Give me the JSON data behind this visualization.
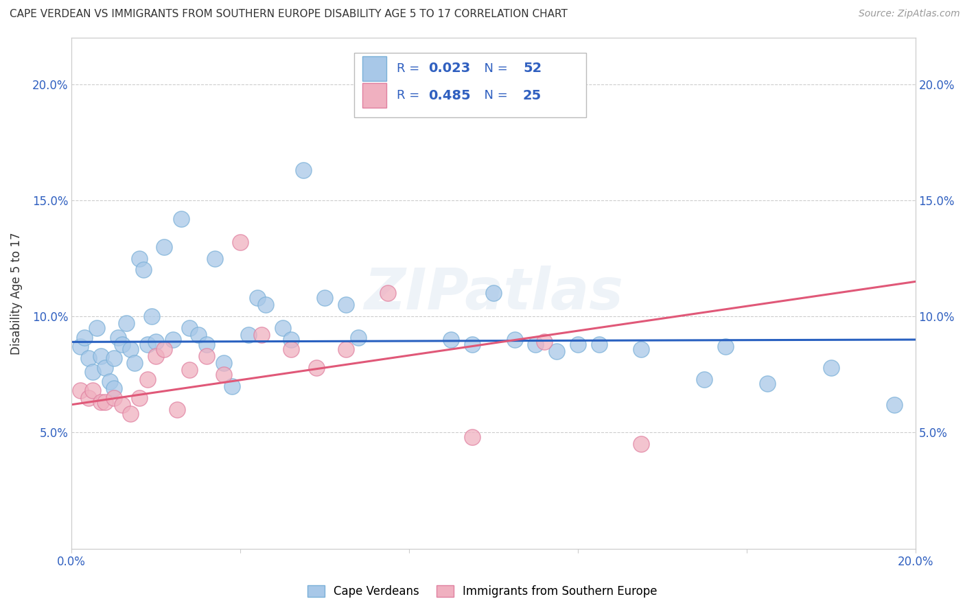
{
  "title": "CAPE VERDEAN VS IMMIGRANTS FROM SOUTHERN EUROPE DISABILITY AGE 5 TO 17 CORRELATION CHART",
  "source": "Source: ZipAtlas.com",
  "ylabel": "Disability Age 5 to 17",
  "xlim": [
    0.0,
    0.2
  ],
  "ylim": [
    0.0,
    0.22
  ],
  "yticks": [
    0.05,
    0.1,
    0.15,
    0.2
  ],
  "ytick_labels": [
    "5.0%",
    "10.0%",
    "15.0%",
    "20.0%"
  ],
  "xticks": [
    0.0,
    0.04,
    0.08,
    0.12,
    0.16,
    0.2
  ],
  "xtick_labels": [
    "0.0%",
    "",
    "",
    "",
    "",
    "20.0%"
  ],
  "blue_R": "0.023",
  "blue_N": "52",
  "pink_R": "0.485",
  "pink_N": "25",
  "blue_color": "#a8c8e8",
  "pink_color": "#f0b0c0",
  "blue_edge_color": "#7ab0d8",
  "pink_edge_color": "#e080a0",
  "blue_line_color": "#2860c0",
  "pink_line_color": "#e05878",
  "legend_text_color": "#3060c0",
  "axis_tick_color": "#3060c0",
  "watermark": "ZIPatlas",
  "blue_scatter_x": [
    0.002,
    0.003,
    0.004,
    0.005,
    0.006,
    0.007,
    0.008,
    0.009,
    0.01,
    0.01,
    0.011,
    0.012,
    0.013,
    0.014,
    0.015,
    0.016,
    0.017,
    0.018,
    0.019,
    0.02,
    0.022,
    0.024,
    0.026,
    0.028,
    0.03,
    0.032,
    0.034,
    0.036,
    0.038,
    0.042,
    0.044,
    0.046,
    0.05,
    0.052,
    0.055,
    0.06,
    0.065,
    0.068,
    0.09,
    0.095,
    0.1,
    0.105,
    0.11,
    0.115,
    0.12,
    0.125,
    0.135,
    0.15,
    0.155,
    0.165,
    0.18,
    0.195
  ],
  "blue_scatter_y": [
    0.087,
    0.091,
    0.082,
    0.076,
    0.095,
    0.083,
    0.078,
    0.072,
    0.069,
    0.082,
    0.091,
    0.088,
    0.097,
    0.086,
    0.08,
    0.125,
    0.12,
    0.088,
    0.1,
    0.089,
    0.13,
    0.09,
    0.142,
    0.095,
    0.092,
    0.088,
    0.125,
    0.08,
    0.07,
    0.092,
    0.108,
    0.105,
    0.095,
    0.09,
    0.163,
    0.108,
    0.105,
    0.091,
    0.09,
    0.088,
    0.11,
    0.09,
    0.088,
    0.085,
    0.088,
    0.088,
    0.086,
    0.073,
    0.087,
    0.071,
    0.078,
    0.062
  ],
  "pink_scatter_x": [
    0.002,
    0.004,
    0.005,
    0.007,
    0.008,
    0.01,
    0.012,
    0.014,
    0.016,
    0.018,
    0.02,
    0.022,
    0.025,
    0.028,
    0.032,
    0.036,
    0.04,
    0.045,
    0.052,
    0.058,
    0.065,
    0.075,
    0.095,
    0.112,
    0.135
  ],
  "pink_scatter_y": [
    0.068,
    0.065,
    0.068,
    0.063,
    0.063,
    0.065,
    0.062,
    0.058,
    0.065,
    0.073,
    0.083,
    0.086,
    0.06,
    0.077,
    0.083,
    0.075,
    0.132,
    0.092,
    0.086,
    0.078,
    0.086,
    0.11,
    0.048,
    0.089,
    0.045
  ],
  "blue_line_x": [
    0.0,
    0.2
  ],
  "blue_line_y": [
    0.089,
    0.09
  ],
  "pink_line_x": [
    0.0,
    0.2
  ],
  "pink_line_y": [
    0.062,
    0.115
  ]
}
